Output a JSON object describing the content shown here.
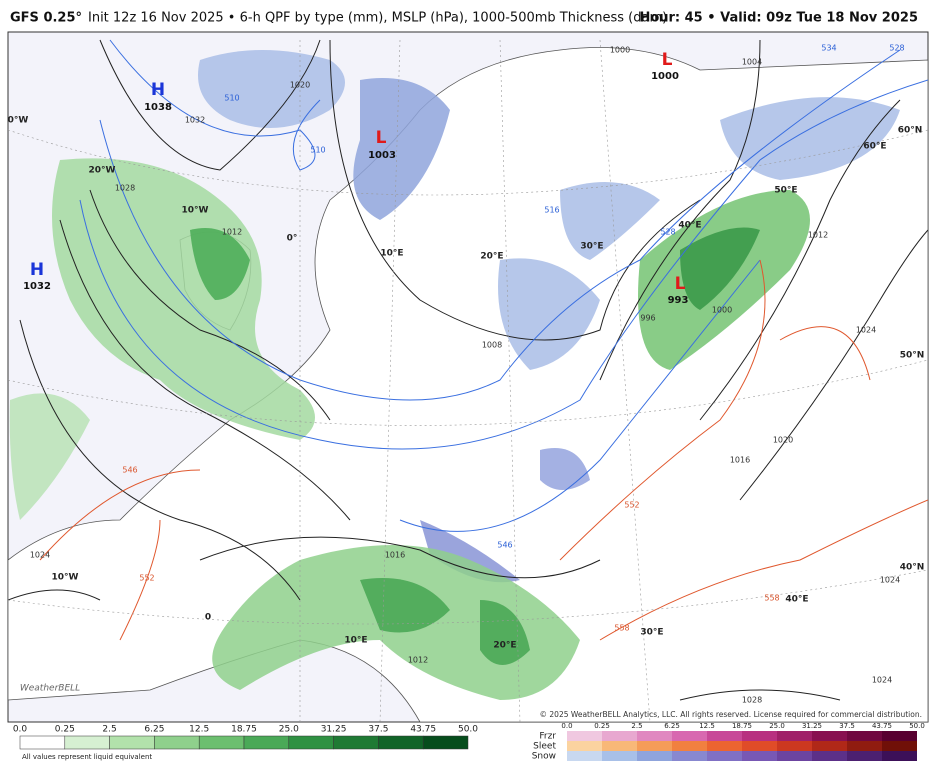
{
  "header": {
    "brand": "GFS 0.25°",
    "subtitle": "Init 12z 16 Nov 2025 • 6-h QPF by type (mm), MSLP (hPa), 1000-500mb Thickness (dam)",
    "valid": "Hour: 45 • Valid: 09z Tue 18 Nov 2025"
  },
  "map": {
    "pressure_centers": [
      {
        "letter": "H",
        "value": "1038"
      },
      {
        "letter": "H",
        "value": "1032"
      },
      {
        "letter": "L",
        "value": "1003"
      },
      {
        "letter": "L",
        "value": "1000"
      },
      {
        "letter": "L",
        "value": "993"
      }
    ],
    "graticule_labels": [
      "0°W",
      "20°W",
      "10°W",
      "0°",
      "10°E",
      "20°E",
      "30°E",
      "40°E",
      "50°E",
      "60°E",
      "60°N",
      "50°N",
      "40°N",
      "10°W",
      "0",
      "10°E",
      "20°E",
      "30°E",
      "40°E"
    ],
    "isobar_labels": [
      "1020",
      "1032",
      "1028",
      "1012",
      "1000",
      "1004",
      "1008",
      "996",
      "1000",
      "1012",
      "1024",
      "1020",
      "1016",
      "1016",
      "1024",
      "1012",
      "1024",
      "1024",
      "1028"
    ],
    "thickness_labels_blue": [
      "510",
      "510",
      "516",
      "528",
      "528",
      "534",
      "546"
    ],
    "thickness_labels_red": [
      "546",
      "552",
      "558",
      "558",
      "552"
    ],
    "logo": "WeatherBELL",
    "copyright": "© 2025 WeatherBELL Analytics, LLC. All rights reserved. License required for commercial distribution."
  },
  "legend": {
    "rain_ticks": [
      "0.0",
      "0.25",
      "2.5",
      "6.25",
      "12.5",
      "18.75",
      "25.0",
      "31.25",
      "37.5",
      "43.75",
      "50.0"
    ],
    "rain_note": "All values represent liquid equivalent",
    "winter_ticks": [
      "0.0",
      "0.25",
      "2.5",
      "6.25",
      "12.5",
      "18.75",
      "25.0",
      "31.25",
      "37.5",
      "43.75",
      "50.0"
    ],
    "winter_types": [
      "Frzr",
      "Sleet",
      "Snow"
    ]
  }
}
